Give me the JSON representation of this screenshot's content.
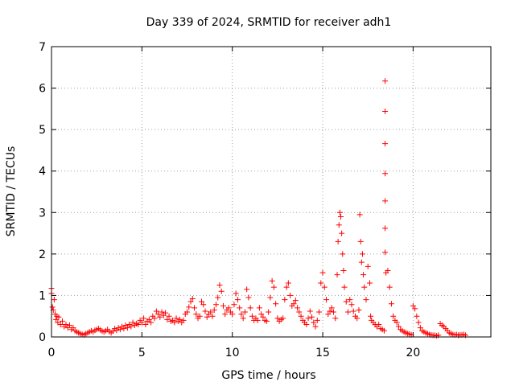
{
  "chart_data": {
    "type": "scatter",
    "title": "Day 339 of 2024, SRMTID for receiver adh1",
    "xlabel": "GPS time / hours",
    "ylabel": "SRMTID / TECUs",
    "xlim": [
      0,
      24.3
    ],
    "ylim": [
      0,
      7
    ],
    "xticks": [
      0,
      5,
      10,
      15,
      20
    ],
    "yticks": [
      0,
      1,
      2,
      3,
      4,
      5,
      6,
      7
    ],
    "grid": true,
    "marker": "+",
    "marker_color": "#ff0000",
    "series": [
      {
        "name": "SRMTID",
        "points": [
          [
            0.0,
            1.17
          ],
          [
            0.0,
            1.05
          ],
          [
            0.05,
            0.72
          ],
          [
            0.1,
            0.65
          ],
          [
            0.15,
            0.9
          ],
          [
            0.2,
            0.55
          ],
          [
            0.25,
            0.42
          ],
          [
            0.3,
            0.5
          ],
          [
            0.35,
            0.35
          ],
          [
            0.4,
            0.48
          ],
          [
            0.5,
            0.3
          ],
          [
            0.6,
            0.38
          ],
          [
            0.7,
            0.25
          ],
          [
            0.8,
            0.3
          ],
          [
            0.9,
            0.22
          ],
          [
            1.0,
            0.28
          ],
          [
            1.1,
            0.18
          ],
          [
            1.2,
            0.22
          ],
          [
            1.3,
            0.15
          ],
          [
            1.4,
            0.12
          ],
          [
            1.5,
            0.1
          ],
          [
            1.6,
            0.08
          ],
          [
            1.7,
            0.06
          ],
          [
            1.8,
            0.05
          ],
          [
            1.9,
            0.08
          ],
          [
            2.0,
            0.1
          ],
          [
            2.1,
            0.12
          ],
          [
            2.2,
            0.15
          ],
          [
            2.3,
            0.12
          ],
          [
            2.4,
            0.16
          ],
          [
            2.5,
            0.18
          ],
          [
            2.6,
            0.2
          ],
          [
            2.7,
            0.17
          ],
          [
            2.8,
            0.14
          ],
          [
            2.9,
            0.12
          ],
          [
            3.0,
            0.15
          ],
          [
            3.1,
            0.18
          ],
          [
            3.2,
            0.13
          ],
          [
            3.3,
            0.1
          ],
          [
            3.4,
            0.14
          ],
          [
            3.5,
            0.2
          ],
          [
            3.6,
            0.16
          ],
          [
            3.7,
            0.22
          ],
          [
            3.8,
            0.18
          ],
          [
            3.9,
            0.25
          ],
          [
            4.0,
            0.2
          ],
          [
            4.1,
            0.28
          ],
          [
            4.2,
            0.22
          ],
          [
            4.3,
            0.3
          ],
          [
            4.4,
            0.25
          ],
          [
            4.5,
            0.35
          ],
          [
            4.6,
            0.28
          ],
          [
            4.7,
            0.32
          ],
          [
            4.8,
            0.3
          ],
          [
            4.9,
            0.4
          ],
          [
            5.0,
            0.35
          ],
          [
            5.1,
            0.45
          ],
          [
            5.2,
            0.3
          ],
          [
            5.3,
            0.38
          ],
          [
            5.4,
            0.42
          ],
          [
            5.5,
            0.35
          ],
          [
            5.6,
            0.5
          ],
          [
            5.7,
            0.45
          ],
          [
            5.8,
            0.62
          ],
          [
            5.9,
            0.55
          ],
          [
            6.0,
            0.48
          ],
          [
            6.1,
            0.6
          ],
          [
            6.2,
            0.52
          ],
          [
            6.3,
            0.58
          ],
          [
            6.4,
            0.42
          ],
          [
            6.5,
            0.5
          ],
          [
            6.6,
            0.38
          ],
          [
            6.7,
            0.4
          ],
          [
            6.8,
            0.35
          ],
          [
            6.9,
            0.45
          ],
          [
            7.0,
            0.38
          ],
          [
            7.1,
            0.42
          ],
          [
            7.2,
            0.35
          ],
          [
            7.3,
            0.4
          ],
          [
            7.4,
            0.55
          ],
          [
            7.5,
            0.6
          ],
          [
            7.6,
            0.72
          ],
          [
            7.7,
            0.85
          ],
          [
            7.8,
            0.92
          ],
          [
            7.9,
            0.7
          ],
          [
            8.0,
            0.55
          ],
          [
            8.1,
            0.45
          ],
          [
            8.2,
            0.5
          ],
          [
            8.3,
            0.85
          ],
          [
            8.4,
            0.78
          ],
          [
            8.5,
            0.62
          ],
          [
            8.6,
            0.48
          ],
          [
            8.7,
            0.55
          ],
          [
            8.8,
            0.6
          ],
          [
            8.9,
            0.5
          ],
          [
            9.0,
            0.65
          ],
          [
            9.1,
            0.78
          ],
          [
            9.2,
            0.95
          ],
          [
            9.3,
            1.25
          ],
          [
            9.4,
            1.1
          ],
          [
            9.5,
            0.75
          ],
          [
            9.6,
            0.55
          ],
          [
            9.7,
            0.65
          ],
          [
            9.8,
            0.7
          ],
          [
            9.9,
            0.6
          ],
          [
            10.0,
            0.55
          ],
          [
            10.1,
            0.78
          ],
          [
            10.2,
            1.05
          ],
          [
            10.3,
            0.9
          ],
          [
            10.4,
            0.7
          ],
          [
            10.5,
            0.55
          ],
          [
            10.6,
            0.45
          ],
          [
            10.7,
            0.6
          ],
          [
            10.8,
            1.15
          ],
          [
            10.9,
            0.95
          ],
          [
            11.0,
            0.7
          ],
          [
            11.1,
            0.5
          ],
          [
            11.2,
            0.4
          ],
          [
            11.3,
            0.45
          ],
          [
            11.4,
            0.4
          ],
          [
            11.5,
            0.7
          ],
          [
            11.6,
            0.55
          ],
          [
            11.7,
            0.48
          ],
          [
            11.8,
            0.4
          ],
          [
            11.9,
            0.38
          ],
          [
            12.0,
            0.6
          ],
          [
            12.1,
            0.95
          ],
          [
            12.2,
            1.35
          ],
          [
            12.3,
            1.2
          ],
          [
            12.4,
            0.8
          ],
          [
            12.5,
            0.45
          ],
          [
            12.6,
            0.38
          ],
          [
            12.7,
            0.42
          ],
          [
            12.8,
            0.45
          ],
          [
            12.9,
            0.9
          ],
          [
            13.0,
            1.2
          ],
          [
            13.1,
            1.3
          ],
          [
            13.2,
            1.0
          ],
          [
            13.3,
            0.75
          ],
          [
            13.4,
            0.8
          ],
          [
            13.5,
            0.88
          ],
          [
            13.6,
            0.7
          ],
          [
            13.7,
            0.6
          ],
          [
            13.8,
            0.5
          ],
          [
            13.9,
            0.4
          ],
          [
            14.0,
            0.35
          ],
          [
            14.1,
            0.3
          ],
          [
            14.2,
            0.45
          ],
          [
            14.3,
            0.62
          ],
          [
            14.4,
            0.48
          ],
          [
            14.5,
            0.35
          ],
          [
            14.6,
            0.25
          ],
          [
            14.7,
            0.4
          ],
          [
            14.8,
            0.6
          ],
          [
            14.9,
            1.3
          ],
          [
            15.0,
            1.55
          ],
          [
            15.1,
            1.2
          ],
          [
            15.2,
            0.9
          ],
          [
            15.3,
            0.55
          ],
          [
            15.4,
            0.62
          ],
          [
            15.5,
            0.7
          ],
          [
            15.6,
            0.6
          ],
          [
            15.7,
            0.45
          ],
          [
            15.8,
            1.5
          ],
          [
            15.85,
            2.3
          ],
          [
            15.9,
            2.7
          ],
          [
            15.95,
            3.0
          ],
          [
            16.0,
            2.9
          ],
          [
            16.05,
            2.5
          ],
          [
            16.1,
            2.0
          ],
          [
            16.15,
            1.6
          ],
          [
            16.2,
            1.2
          ],
          [
            16.3,
            0.85
          ],
          [
            16.4,
            0.6
          ],
          [
            16.5,
            0.9
          ],
          [
            16.6,
            0.78
          ],
          [
            16.7,
            0.62
          ],
          [
            16.8,
            0.5
          ],
          [
            16.9,
            0.45
          ],
          [
            17.0,
            0.65
          ],
          [
            17.05,
            2.95
          ],
          [
            17.1,
            2.3
          ],
          [
            17.15,
            1.8
          ],
          [
            17.2,
            2.0
          ],
          [
            17.25,
            1.5
          ],
          [
            17.3,
            1.2
          ],
          [
            17.4,
            0.9
          ],
          [
            17.5,
            1.7
          ],
          [
            17.6,
            1.3
          ],
          [
            17.65,
            0.5
          ],
          [
            17.7,
            0.4
          ],
          [
            17.8,
            0.35
          ],
          [
            17.9,
            0.3
          ],
          [
            18.0,
            0.25
          ],
          [
            18.1,
            0.3
          ],
          [
            18.2,
            0.2
          ],
          [
            18.3,
            0.18
          ],
          [
            18.4,
            0.15
          ],
          [
            18.45,
            6.17
          ],
          [
            18.45,
            5.44
          ],
          [
            18.45,
            4.66
          ],
          [
            18.45,
            3.94
          ],
          [
            18.45,
            3.28
          ],
          [
            18.45,
            2.62
          ],
          [
            18.45,
            2.04
          ],
          [
            18.5,
            1.55
          ],
          [
            18.6,
            1.6
          ],
          [
            18.7,
            1.2
          ],
          [
            18.8,
            0.8
          ],
          [
            18.9,
            0.5
          ],
          [
            19.0,
            0.4
          ],
          [
            19.1,
            0.35
          ],
          [
            19.2,
            0.25
          ],
          [
            19.3,
            0.18
          ],
          [
            19.4,
            0.15
          ],
          [
            19.5,
            0.12
          ],
          [
            19.6,
            0.1
          ],
          [
            19.7,
            0.08
          ],
          [
            19.8,
            0.07
          ],
          [
            19.9,
            0.05
          ],
          [
            20.0,
            0.75
          ],
          [
            20.1,
            0.68
          ],
          [
            20.2,
            0.5
          ],
          [
            20.3,
            0.35
          ],
          [
            20.4,
            0.22
          ],
          [
            20.5,
            0.15
          ],
          [
            20.6,
            0.12
          ],
          [
            20.7,
            0.1
          ],
          [
            20.8,
            0.08
          ],
          [
            20.9,
            0.06
          ],
          [
            21.0,
            0.05
          ],
          [
            21.1,
            0.04
          ],
          [
            21.2,
            0.04
          ],
          [
            21.3,
            0.03
          ],
          [
            21.4,
            0.04
          ],
          [
            21.5,
            0.32
          ],
          [
            21.6,
            0.28
          ],
          [
            21.7,
            0.25
          ],
          [
            21.8,
            0.2
          ],
          [
            21.9,
            0.15
          ],
          [
            22.0,
            0.1
          ],
          [
            22.1,
            0.08
          ],
          [
            22.2,
            0.06
          ],
          [
            22.3,
            0.05
          ],
          [
            22.4,
            0.06
          ],
          [
            22.5,
            0.04
          ],
          [
            22.6,
            0.05
          ],
          [
            22.7,
            0.05
          ],
          [
            22.8,
            0.06
          ],
          [
            22.9,
            0.04
          ]
        ]
      }
    ]
  }
}
